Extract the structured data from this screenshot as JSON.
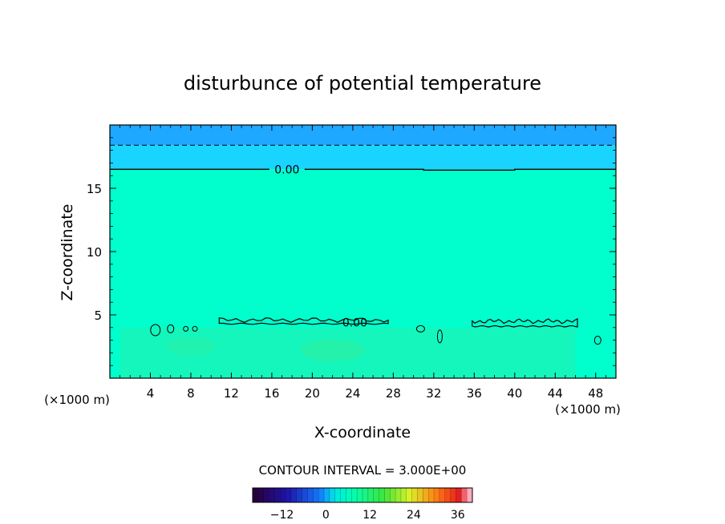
{
  "chart_data": {
    "type": "contour",
    "title": "disturbunce of potential temperature",
    "xlabel": "X-coordinate",
    "ylabel": "Z-coordinate",
    "x_unit": "(×1000 m)",
    "x_unit_right": "(×1000 m)",
    "xlim": [
      0,
      50
    ],
    "ylim": [
      0,
      20
    ],
    "x_ticks": [
      4,
      8,
      12,
      16,
      20,
      24,
      28,
      32,
      36,
      40,
      44,
      48
    ],
    "y_ticks": [
      5,
      10,
      15
    ],
    "contour_labels": [
      {
        "text": "0.00",
        "x": 17.5,
        "y": 16.5
      },
      {
        "text": "0.00",
        "x": 24.2,
        "y": 4.4
      }
    ],
    "zero_contour_top_z": 16.5,
    "dashed_contour_z": 18.4,
    "upper_band_values": [
      -1.5,
      -3
    ],
    "contour_interval_text": "CONTOUR INTERVAL = 3.000E+00",
    "colorbar": {
      "min": -20,
      "max": 40,
      "step": 1.5,
      "ticks": [
        -12,
        0,
        12,
        24,
        36
      ]
    },
    "colors": {
      "top_band": "#1ea8ff",
      "upper_band": "#18d4ff",
      "field": "#00ffcc",
      "low_region": "#22f0b0",
      "low_region_green": "#33ee99"
    }
  }
}
